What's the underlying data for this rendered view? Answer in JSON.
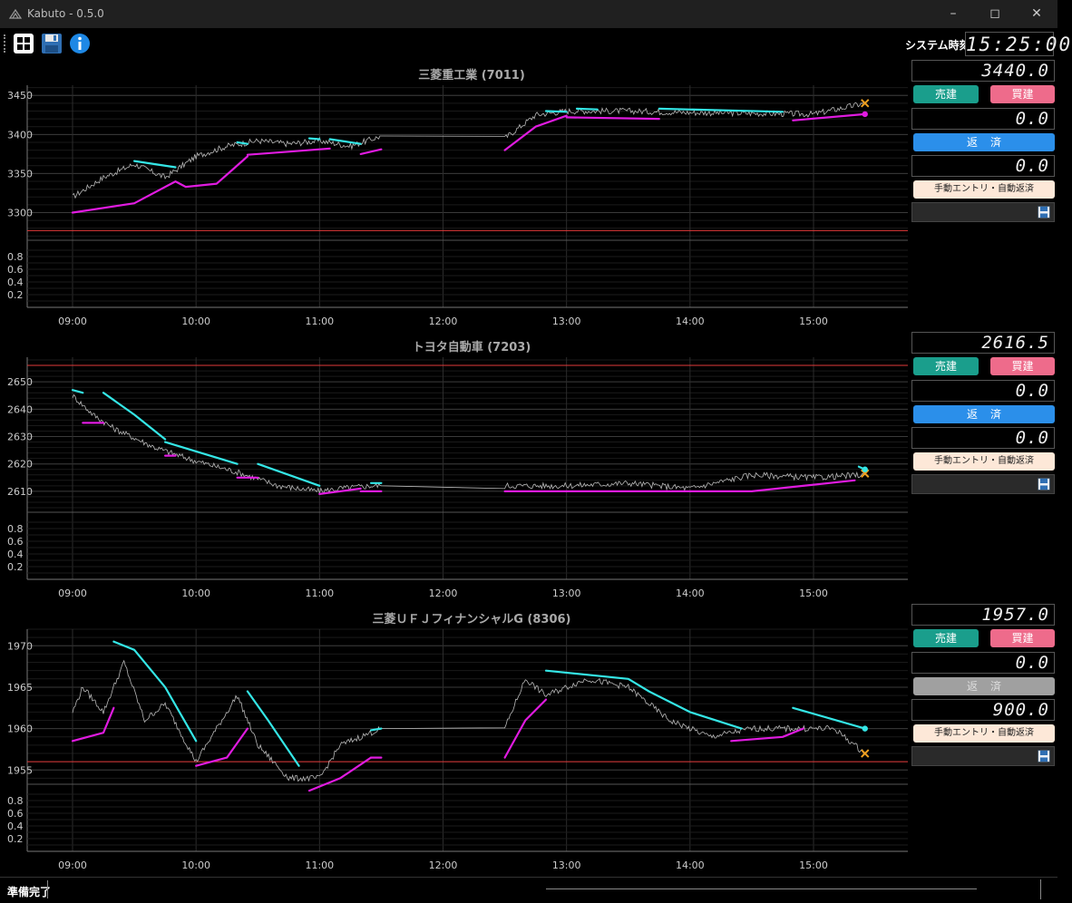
{
  "window": {
    "title": "Kabuto - 0.5.0",
    "controls": [
      "minimize-icon",
      "maximize-icon",
      "close-icon"
    ]
  },
  "toolbar": {
    "buttons": [
      "grid-icon",
      "save-icon",
      "info-icon"
    ],
    "system_time_label": "システム時刻",
    "system_time": "15:25:00"
  },
  "colors": {
    "background": "#000000",
    "trade_line": "#b8b8b8",
    "vwap_upper": "#34e6e6",
    "vwap_lower": "#e01be0",
    "reference_line": "#e23a3a",
    "marker_x": "#f0a020",
    "sell_button": "#1a9e8c",
    "buy_button": "#ee6b8b",
    "repay_button": "#2b8fea"
  },
  "panels": [
    {
      "title": "三菱重工業 (7011)",
      "price": "3440.0",
      "position": "0.0",
      "profit": "0.0",
      "sell_label": "売建",
      "buy_label": "買建",
      "repay_label": "返済",
      "repay_enabled": true,
      "mode_label": "手動エントリ・自動返済",
      "y_ticks": [
        "3450",
        "3400",
        "3350",
        "3300"
      ],
      "y_range": [
        3267,
        3463
      ],
      "ref_line": 3277,
      "sub_ticks": [
        "0.8",
        "0.6",
        "0.4",
        "0.2"
      ],
      "x_ticks": [
        "09:00",
        "10:00",
        "11:00",
        "12:00",
        "13:00",
        "14:00",
        "15:00"
      ]
    },
    {
      "title": "トヨタ自動車 (7203)",
      "price": "2616.5",
      "position": "0.0",
      "profit": "0.0",
      "sell_label": "売建",
      "buy_label": "買建",
      "repay_label": "返済",
      "repay_enabled": true,
      "mode_label": "手動エントリ・自動返済",
      "y_ticks": [
        "2650",
        "2640",
        "2630",
        "2620",
        "2610"
      ],
      "y_range": [
        2603,
        2659
      ],
      "ref_line": 2656,
      "sub_ticks": [
        "0.8",
        "0.6",
        "0.4",
        "0.2"
      ],
      "x_ticks": [
        "09:00",
        "10:00",
        "11:00",
        "12:00",
        "13:00",
        "14:00",
        "15:00"
      ]
    },
    {
      "title": "三菱ＵＦＪフィナンシャルG (8306)",
      "price": "1957.0",
      "position": "0.0",
      "profit": "900.0",
      "sell_label": "売建",
      "buy_label": "買建",
      "repay_label": "返済",
      "repay_enabled": false,
      "mode_label": "手動エントリ・自動返済",
      "y_ticks": [
        "1970",
        "1965",
        "1960",
        "1955"
      ],
      "y_range": [
        1953.5,
        1972
      ],
      "ref_line": 1956,
      "sub_ticks": [
        "0.8",
        "0.6",
        "0.4",
        "0.2"
      ],
      "x_ticks": [
        "09:00",
        "10:00",
        "11:00",
        "12:00",
        "13:00",
        "14:00",
        "15:00"
      ]
    }
  ],
  "chart_data": [
    {
      "type": "line",
      "title": "三菱重工業 (7011)",
      "x_ticks": [
        "09:00",
        "10:00",
        "11:00",
        "12:00",
        "13:00",
        "14:00",
        "15:00"
      ],
      "y_ticks": [
        3450,
        3400,
        3350,
        3300
      ],
      "sessions": [
        [
          "09:00",
          "11:30"
        ],
        [
          "12:30",
          "15:25"
        ]
      ],
      "series": [
        {
          "role": "price",
          "x": [
            "09:00",
            "09:15",
            "09:30",
            "09:45",
            "10:00",
            "10:15",
            "10:30",
            "10:45",
            "11:00",
            "11:15",
            "11:30",
            "12:30",
            "12:45",
            "13:00",
            "13:30",
            "14:00",
            "14:30",
            "15:00",
            "15:25"
          ],
          "y": [
            3320,
            3345,
            3362,
            3345,
            3372,
            3385,
            3392,
            3388,
            3392,
            3385,
            3398,
            3395,
            3425,
            3430,
            3430,
            3428,
            3427,
            3426,
            3440
          ]
        },
        {
          "role": "upper",
          "segments": [
            {
              "x": [
                "09:30",
                "09:50"
              ],
              "y": [
                3366,
                3358
              ]
            },
            {
              "x": [
                "10:20",
                "10:25"
              ],
              "y": [
                3390,
                3388
              ]
            },
            {
              "x": [
                "10:55",
                "11:00"
              ],
              "y": [
                3395,
                3394
              ]
            },
            {
              "x": [
                "11:05",
                "11:20"
              ],
              "y": [
                3394,
                3388
              ]
            },
            {
              "x": [
                "12:50",
                "13:00"
              ],
              "y": [
                3430,
                3429
              ]
            },
            {
              "x": [
                "13:05",
                "13:15"
              ],
              "y": [
                3433,
                3432
              ]
            },
            {
              "x": [
                "13:45",
                "14:45"
              ],
              "y": [
                3433,
                3429
              ]
            }
          ]
        },
        {
          "role": "lower",
          "segments": [
            {
              "x": [
                "09:00",
                "09:30",
                "09:50",
                "09:55",
                "10:10",
                "10:25"
              ],
              "y": [
                3300,
                3312,
                3340,
                3333,
                3337,
                3372
              ]
            },
            {
              "x": [
                "10:25",
                "10:45",
                "11:05"
              ],
              "y": [
                3374,
                3378,
                3382
              ]
            },
            {
              "x": [
                "11:20",
                "11:30"
              ],
              "y": [
                3375,
                3381
              ]
            },
            {
              "x": [
                "12:30",
                "12:45",
                "13:00"
              ],
              "y": [
                3380,
                3410,
                3424
              ]
            },
            {
              "x": [
                "13:00",
                "13:45"
              ],
              "y": [
                3422,
                3420
              ]
            },
            {
              "x": [
                "14:50",
                "15:25"
              ],
              "y": [
                3418,
                3426
              ]
            }
          ]
        }
      ],
      "markers": [
        {
          "x": "15:25",
          "y": 3440,
          "shape": "x"
        },
        {
          "x": "15:25",
          "y": 3426,
          "shape": "dot"
        }
      ]
    },
    {
      "type": "line",
      "title": "トヨタ自動車 (7203)",
      "x_ticks": [
        "09:00",
        "10:00",
        "11:00",
        "12:00",
        "13:00",
        "14:00",
        "15:00"
      ],
      "y_ticks": [
        2650,
        2640,
        2630,
        2620,
        2610
      ],
      "sessions": [
        [
          "09:00",
          "11:30"
        ],
        [
          "12:30",
          "15:25"
        ]
      ],
      "series": [
        {
          "role": "price",
          "x": [
            "09:00",
            "09:10",
            "09:20",
            "09:40",
            "10:00",
            "10:20",
            "10:40",
            "11:00",
            "11:10",
            "11:25",
            "11:30",
            "12:30",
            "13:00",
            "13:30",
            "14:00",
            "14:30",
            "15:00",
            "15:25"
          ],
          "y": [
            2645,
            2638,
            2633,
            2626,
            2621,
            2617,
            2612,
            2610,
            2611,
            2612,
            2612,
            2612,
            2612,
            2613,
            2611,
            2616,
            2615,
            2616
          ]
        },
        {
          "role": "upper",
          "segments": [
            {
              "x": [
                "09:00",
                "09:05"
              ],
              "y": [
                2647,
                2646
              ]
            },
            {
              "x": [
                "09:15",
                "09:30",
                "09:45"
              ],
              "y": [
                2646,
                2638,
                2629
              ]
            },
            {
              "x": [
                "09:45",
                "10:20"
              ],
              "y": [
                2628,
                2620
              ]
            },
            {
              "x": [
                "10:30",
                "11:00"
              ],
              "y": [
                2620,
                2612
              ]
            },
            {
              "x": [
                "11:25",
                "11:30"
              ],
              "y": [
                2613,
                2613
              ]
            },
            {
              "x": [
                "15:22",
                "15:25"
              ],
              "y": [
                2619,
                2618
              ]
            }
          ]
        },
        {
          "role": "lower",
          "segments": [
            {
              "x": [
                "09:05",
                "09:15"
              ],
              "y": [
                2635,
                2635
              ]
            },
            {
              "x": [
                "09:45",
                "09:50"
              ],
              "y": [
                2623,
                2623
              ]
            },
            {
              "x": [
                "10:20",
                "10:30"
              ],
              "y": [
                2615,
                2615
              ]
            },
            {
              "x": [
                "11:00",
                "11:20"
              ],
              "y": [
                2609,
                2611
              ]
            },
            {
              "x": [
                "11:20",
                "11:30"
              ],
              "y": [
                2610,
                2610
              ]
            },
            {
              "x": [
                "12:30",
                "14:30",
                "15:20"
              ],
              "y": [
                2610,
                2610,
                2614
              ]
            }
          ]
        }
      ],
      "markers": [
        {
          "x": "15:25",
          "y": 2616.5,
          "shape": "x"
        },
        {
          "x": "15:25",
          "y": 2618,
          "shape": "dot"
        }
      ]
    },
    {
      "type": "line",
      "title": "三菱ＵＦＪフィナンシャルG (8306)",
      "x_ticks": [
        "09:00",
        "10:00",
        "11:00",
        "12:00",
        "13:00",
        "14:00",
        "15:00"
      ],
      "y_ticks": [
        1970,
        1965,
        1960,
        1955
      ],
      "sessions": [
        [
          "09:00",
          "11:30"
        ],
        [
          "12:30",
          "15:25"
        ]
      ],
      "series": [
        {
          "role": "price",
          "x": [
            "09:00",
            "09:05",
            "09:15",
            "09:25",
            "09:35",
            "09:45",
            "10:00",
            "10:10",
            "10:20",
            "10:30",
            "10:45",
            "11:00",
            "11:10",
            "11:20",
            "11:30",
            "12:30",
            "12:40",
            "12:50",
            "13:10",
            "13:30",
            "13:50",
            "14:10",
            "14:30",
            "14:50",
            "15:10",
            "15:25"
          ],
          "y": [
            1962,
            1965,
            1962,
            1968,
            1961,
            1963,
            1956,
            1960,
            1964,
            1958,
            1954,
            1954,
            1958,
            1959,
            1960,
            1960,
            1966,
            1964,
            1966,
            1965,
            1961,
            1959,
            1960,
            1960,
            1960,
            1957
          ]
        },
        {
          "role": "upper",
          "segments": [
            {
              "x": [
                "09:20",
                "09:30",
                "09:45",
                "10:00"
              ],
              "y": [
                1970.5,
                1969.5,
                1965,
                1958.5
              ]
            },
            {
              "x": [
                "10:25",
                "10:35",
                "10:50"
              ],
              "y": [
                1964.5,
                1961,
                1955.5
              ]
            },
            {
              "x": [
                "11:25",
                "11:30"
              ],
              "y": [
                1959.8,
                1960
              ]
            },
            {
              "x": [
                "12:50",
                "13:30",
                "13:40",
                "14:00",
                "14:25"
              ],
              "y": [
                1967,
                1966,
                1964.5,
                1962,
                1960
              ]
            },
            {
              "x": [
                "14:50",
                "15:25"
              ],
              "y": [
                1962.5,
                1960
              ]
            }
          ]
        },
        {
          "role": "lower",
          "segments": [
            {
              "x": [
                "09:00",
                "09:15",
                "09:20"
              ],
              "y": [
                1958.5,
                1959.5,
                1962.5
              ]
            },
            {
              "x": [
                "10:00",
                "10:15",
                "10:25"
              ],
              "y": [
                1955.5,
                1956.5,
                1960
              ]
            },
            {
              "x": [
                "10:55",
                "11:10",
                "11:25"
              ],
              "y": [
                1952.5,
                1954,
                1956.5
              ]
            },
            {
              "x": [
                "11:25",
                "11:30"
              ],
              "y": [
                1956.5,
                1956.5
              ]
            },
            {
              "x": [
                "12:30",
                "12:40",
                "12:50"
              ],
              "y": [
                1956.5,
                1961,
                1963.5
              ]
            },
            {
              "x": [
                "14:20",
                "14:45",
                "14:55"
              ],
              "y": [
                1958.5,
                1959,
                1960
              ]
            }
          ]
        }
      ],
      "markers": [
        {
          "x": "15:25",
          "y": 1957,
          "shape": "x"
        },
        {
          "x": "15:25",
          "y": 1960,
          "shape": "dot"
        }
      ]
    }
  ],
  "status": {
    "text": "準備完了"
  }
}
